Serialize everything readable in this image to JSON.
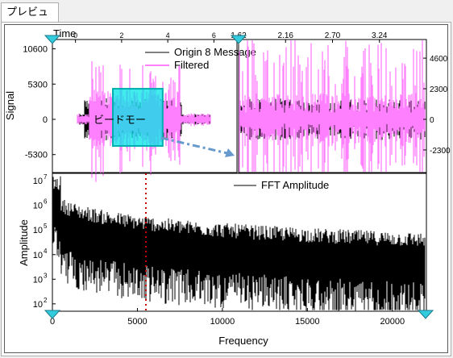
{
  "preview_tab": {
    "label": "プレビュー"
  },
  "colors": {
    "origin": "#000000",
    "filtered": "#ff80ff",
    "roi": "#00e6e6",
    "arrow": "#6699cc",
    "marker": "#cc0000",
    "handle": "#33ccdd"
  },
  "icons": [
    "zoom-handle-triangle-icon"
  ],
  "chart_data": [
    {
      "type": "line",
      "panel": "signal-overview",
      "title": "",
      "xlabel": "Time",
      "ylabel": "Signal",
      "xlim": [
        -1,
        7
      ],
      "ylim": [
        -8000,
        12000
      ],
      "x_ticks": [
        "0",
        "2",
        "4",
        "6"
      ],
      "y_ticks": [
        "10600",
        "5300",
        "0",
        "-5300"
      ],
      "series": [
        {
          "name": "Origin 8 Message"
        },
        {
          "name": "Filtered"
        }
      ],
      "roi": {
        "x_range": [
          1.62,
          3.78
        ],
        "y_range": [
          -4000,
          4600
        ]
      },
      "roi_label": "ビードモー"
    },
    {
      "type": "line",
      "panel": "signal-zoom",
      "xlim": [
        1.62,
        3.78
      ],
      "ylim": [
        -4000,
        6000
      ],
      "x_ticks": [
        "1.62",
        "2.16",
        "2.70",
        "3.24"
      ],
      "y_ticks": [
        "4600",
        "2300",
        "0",
        "-2300"
      ]
    },
    {
      "type": "line",
      "panel": "fft",
      "xlabel": "Frequency",
      "ylabel": "Amplitude",
      "y_scale": "log",
      "xlim": [
        0,
        22000
      ],
      "ylim_exponent": [
        1.7,
        7.3
      ],
      "x_ticks": [
        "0",
        "5000",
        "10000",
        "15000",
        "20000"
      ],
      "y_ticks": [
        "10^7",
        "10^6",
        "10^5",
        "10^4",
        "10^3",
        "10^2"
      ],
      "y_tick_base": "10",
      "y_tick_exponents": [
        "7",
        "6",
        "5",
        "4",
        "3",
        "2"
      ],
      "series": [
        {
          "name": "FFT Amplitude"
        }
      ],
      "marker_x": 5500
    }
  ]
}
